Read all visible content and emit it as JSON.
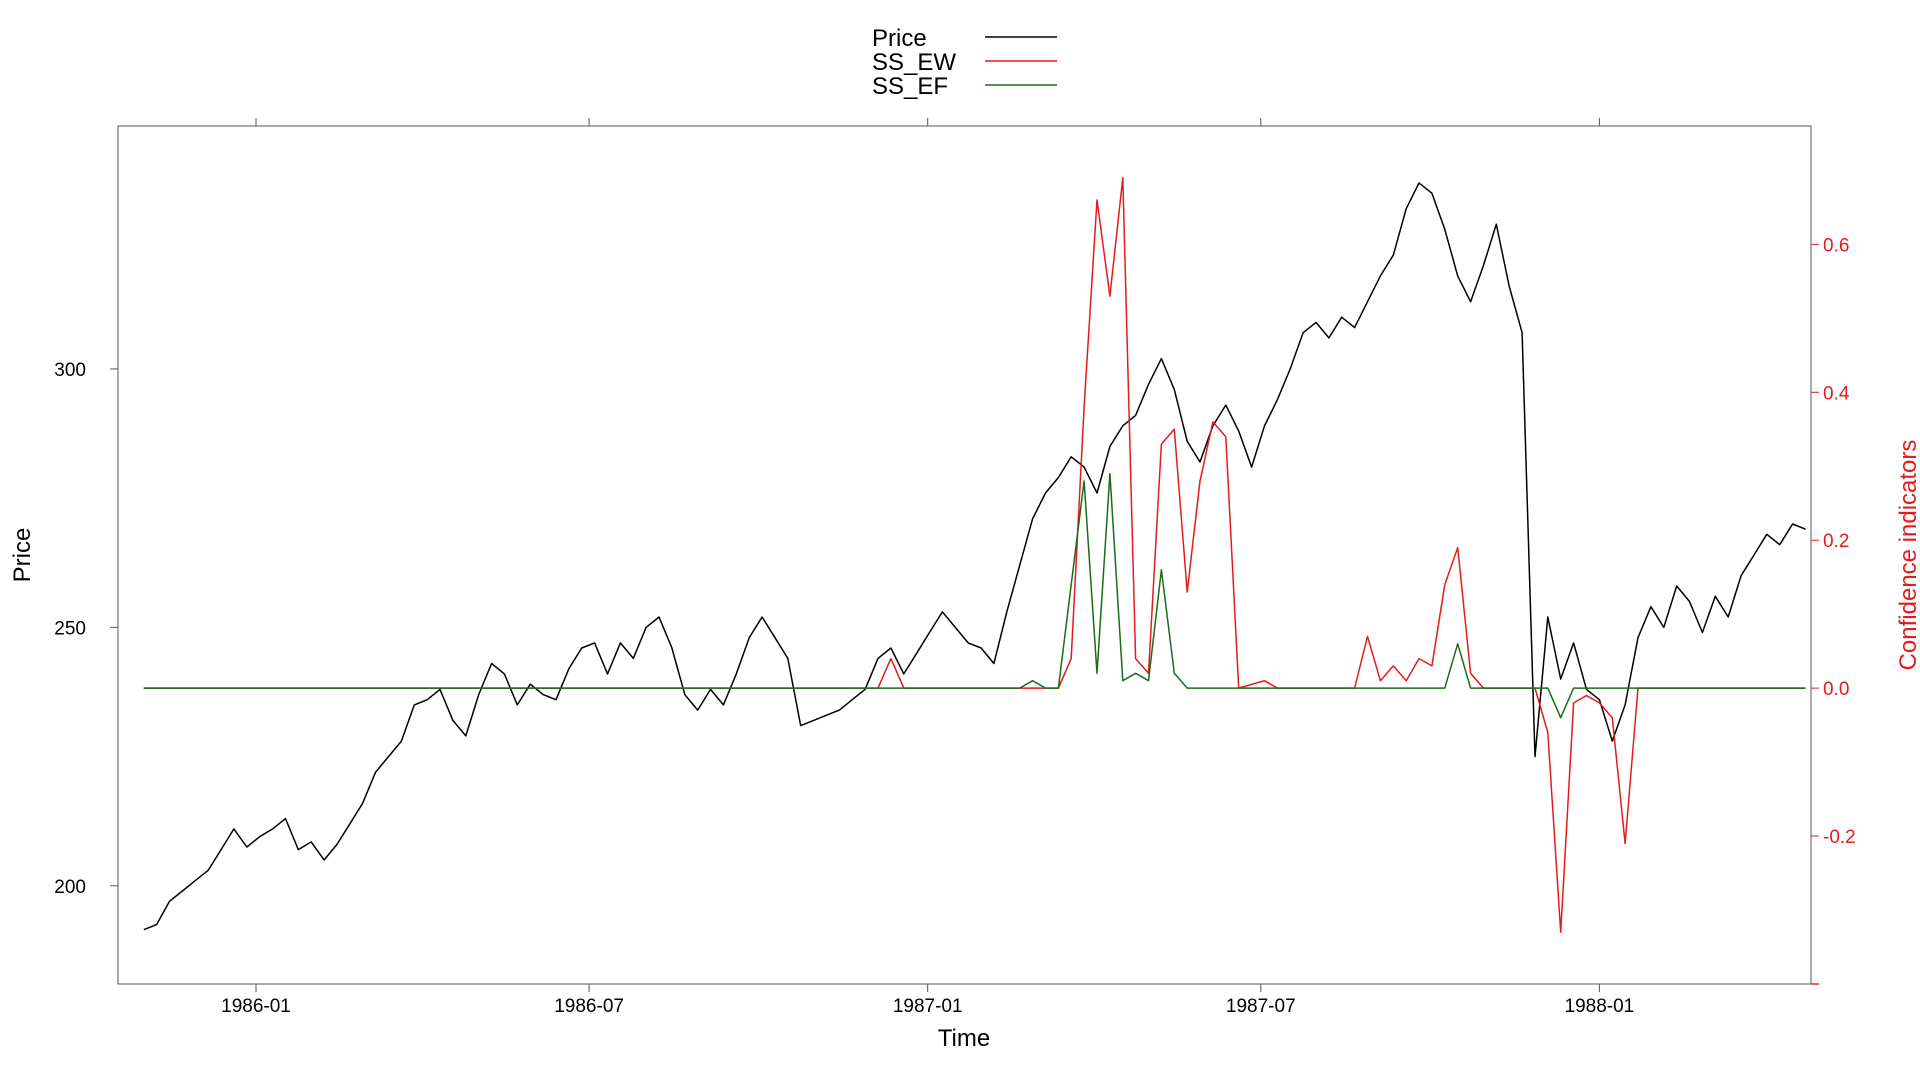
{
  "chart_data": {
    "type": "line",
    "xlabel": "Time",
    "ylabel": "Price",
    "y2label": "Confidence indicators",
    "xlim": [
      "1985-10-18",
      "1988-04-25"
    ],
    "ylim": [
      181,
      347
    ],
    "y2lim": [
      -0.4,
      0.76
    ],
    "x_ticks": [
      "1986-01-01",
      "1986-07-01",
      "1987-01-01",
      "1987-07-01",
      "1988-01-01"
    ],
    "x_tick_labels": [
      "1986-01",
      "1986-07",
      "1987-01",
      "1987-07",
      "1988-01"
    ],
    "y_ticks": [
      200,
      250,
      300
    ],
    "y_tick_labels": [
      "200",
      "250",
      "300"
    ],
    "y2_ticks": [
      -0.2,
      0.0,
      0.2,
      0.4,
      0.6
    ],
    "y2_tick_labels": [
      "-0.2",
      "0.0",
      "0.2",
      "0.4",
      "0.6"
    ],
    "legend": {
      "position": "top-center",
      "entries": [
        "Price",
        "SS_EW",
        "SS_EF"
      ]
    },
    "colors": {
      "Price": "#000000",
      "SS_EW": "#e41a1c",
      "SS_EF": "#1a6b1a",
      "axis": "#555555",
      "y2axis": "#e41a1c"
    },
    "series": [
      {
        "name": "Price",
        "axis": "left",
        "points": [
          [
            "1985-11-01",
            191.5
          ],
          [
            "1985-11-08",
            192.5
          ],
          [
            "1985-11-15",
            197
          ],
          [
            "1985-11-22",
            199
          ],
          [
            "1985-11-29",
            201
          ],
          [
            "1985-12-06",
            203
          ],
          [
            "1985-12-13",
            207
          ],
          [
            "1985-12-20",
            211
          ],
          [
            "1985-12-27",
            207.5
          ],
          [
            "1986-01-03",
            209.5
          ],
          [
            "1986-01-10",
            211
          ],
          [
            "1986-01-17",
            213
          ],
          [
            "1986-01-24",
            207
          ],
          [
            "1986-01-31",
            208.5
          ],
          [
            "1986-02-07",
            205
          ],
          [
            "1986-02-14",
            208
          ],
          [
            "1986-02-21",
            212
          ],
          [
            "1986-02-28",
            216
          ],
          [
            "1986-03-07",
            222
          ],
          [
            "1986-03-14",
            225
          ],
          [
            "1986-03-21",
            228
          ],
          [
            "1986-03-28",
            235
          ],
          [
            "1986-04-04",
            236
          ],
          [
            "1986-04-11",
            238
          ],
          [
            "1986-04-18",
            232
          ],
          [
            "1986-04-25",
            229
          ],
          [
            "1986-05-02",
            237
          ],
          [
            "1986-05-09",
            243
          ],
          [
            "1986-05-16",
            241
          ],
          [
            "1986-05-23",
            235
          ],
          [
            "1986-05-30",
            239
          ],
          [
            "1986-06-06",
            237
          ],
          [
            "1986-06-13",
            236
          ],
          [
            "1986-06-20",
            242
          ],
          [
            "1986-06-27",
            246
          ],
          [
            "1986-07-04",
            247
          ],
          [
            "1986-07-11",
            241
          ],
          [
            "1986-07-18",
            247
          ],
          [
            "1986-07-25",
            244
          ],
          [
            "1986-08-01",
            250
          ],
          [
            "1986-08-08",
            252
          ],
          [
            "1986-08-15",
            246
          ],
          [
            "1986-08-22",
            237
          ],
          [
            "1986-08-29",
            234
          ],
          [
            "1986-09-05",
            238
          ],
          [
            "1986-09-12",
            235
          ],
          [
            "1986-09-19",
            241
          ],
          [
            "1986-09-26",
            248
          ],
          [
            "1986-10-03",
            252
          ],
          [
            "1986-10-10",
            248
          ],
          [
            "1986-10-17",
            244
          ],
          [
            "1986-10-24",
            231
          ],
          [
            "1986-10-31",
            232
          ],
          [
            "1986-11-07",
            233
          ],
          [
            "1986-11-14",
            234
          ],
          [
            "1986-11-21",
            236
          ],
          [
            "1986-11-28",
            238
          ],
          [
            "1986-12-05",
            244
          ],
          [
            "1986-12-12",
            246
          ],
          [
            "1986-12-19",
            241
          ],
          [
            "1986-12-26",
            245
          ],
          [
            "1987-01-02",
            249
          ],
          [
            "1987-01-09",
            253
          ],
          [
            "1987-01-16",
            250
          ],
          [
            "1987-01-23",
            247
          ],
          [
            "1987-01-30",
            246
          ],
          [
            "1987-02-06",
            243
          ],
          [
            "1987-02-13",
            253
          ],
          [
            "1987-02-20",
            262
          ],
          [
            "1987-02-27",
            271
          ],
          [
            "1987-03-06",
            276
          ],
          [
            "1987-03-13",
            279
          ],
          [
            "1987-03-20",
            283
          ],
          [
            "1987-03-27",
            281
          ],
          [
            "1987-04-03",
            276
          ],
          [
            "1987-04-10",
            285
          ],
          [
            "1987-04-17",
            289
          ],
          [
            "1987-04-24",
            291
          ],
          [
            "1987-05-01",
            297
          ],
          [
            "1987-05-08",
            302
          ],
          [
            "1987-05-15",
            296
          ],
          [
            "1987-05-22",
            286
          ],
          [
            "1987-05-29",
            282
          ],
          [
            "1987-06-05",
            289
          ],
          [
            "1987-06-12",
            293
          ],
          [
            "1987-06-19",
            288
          ],
          [
            "1987-06-26",
            281
          ],
          [
            "1987-07-03",
            289
          ],
          [
            "1987-07-10",
            294
          ],
          [
            "1987-07-17",
            300
          ],
          [
            "1987-07-24",
            307
          ],
          [
            "1987-07-31",
            309
          ],
          [
            "1987-08-07",
            306
          ],
          [
            "1987-08-14",
            310
          ],
          [
            "1987-08-21",
            308
          ],
          [
            "1987-08-28",
            313
          ],
          [
            "1987-09-04",
            318
          ],
          [
            "1987-09-11",
            322
          ],
          [
            "1987-09-18",
            331
          ],
          [
            "1987-09-25",
            336
          ],
          [
            "1987-10-02",
            334
          ],
          [
            "1987-10-09",
            327
          ],
          [
            "1987-10-16",
            318
          ],
          [
            "1987-10-23",
            313
          ],
          [
            "1987-10-30",
            320
          ],
          [
            "1987-11-06",
            328
          ],
          [
            "1987-11-13",
            316
          ],
          [
            "1987-11-20",
            307
          ],
          [
            "1987-11-27",
            225
          ],
          [
            "1987-12-04",
            252
          ],
          [
            "1987-12-11",
            240
          ],
          [
            "1987-12-18",
            247
          ],
          [
            "1987-12-25",
            238
          ],
          [
            "1988-01-01",
            236
          ],
          [
            "1988-01-08",
            228
          ],
          [
            "1988-01-15",
            235
          ],
          [
            "1988-01-22",
            248
          ],
          [
            "1988-01-29",
            254
          ],
          [
            "1988-02-05",
            250
          ],
          [
            "1988-02-12",
            258
          ],
          [
            "1988-02-19",
            255
          ],
          [
            "1988-02-26",
            249
          ],
          [
            "1988-03-04",
            256
          ],
          [
            "1988-03-11",
            252
          ],
          [
            "1988-03-18",
            260
          ],
          [
            "1988-03-25",
            264
          ],
          [
            "1988-04-01",
            268
          ],
          [
            "1988-04-08",
            266
          ],
          [
            "1988-04-15",
            270
          ],
          [
            "1988-04-22",
            269
          ]
        ]
      },
      {
        "name": "SS_EW",
        "axis": "right",
        "points": [
          [
            "1985-11-01",
            0
          ],
          [
            "1986-12-05",
            0
          ],
          [
            "1986-12-12",
            0.04
          ],
          [
            "1986-12-19",
            0
          ],
          [
            "1987-03-13",
            0
          ],
          [
            "1987-03-20",
            0.04
          ],
          [
            "1987-03-27",
            0.38
          ],
          [
            "1987-04-03",
            0.66
          ],
          [
            "1987-04-10",
            0.53
          ],
          [
            "1987-04-17",
            0.69
          ],
          [
            "1987-04-24",
            0.04
          ],
          [
            "1987-05-01",
            0.02
          ],
          [
            "1987-05-08",
            0.33
          ],
          [
            "1987-05-15",
            0.35
          ],
          [
            "1987-05-22",
            0.13
          ],
          [
            "1987-05-29",
            0.28
          ],
          [
            "1987-06-05",
            0.36
          ],
          [
            "1987-06-12",
            0.34
          ],
          [
            "1987-06-19",
            0
          ],
          [
            "1987-07-03",
            0.01
          ],
          [
            "1987-07-10",
            0
          ],
          [
            "1987-08-21",
            0
          ],
          [
            "1987-08-28",
            0.07
          ],
          [
            "1987-09-04",
            0.01
          ],
          [
            "1987-09-11",
            0.03
          ],
          [
            "1987-09-18",
            0.01
          ],
          [
            "1987-09-25",
            0.04
          ],
          [
            "1987-10-02",
            0.03
          ],
          [
            "1987-10-09",
            0.14
          ],
          [
            "1987-10-16",
            0.19
          ],
          [
            "1987-10-23",
            0.02
          ],
          [
            "1987-10-30",
            0
          ],
          [
            "1987-11-27",
            0
          ],
          [
            "1987-12-04",
            -0.06
          ],
          [
            "1987-12-11",
            -0.33
          ],
          [
            "1987-12-18",
            -0.02
          ],
          [
            "1987-12-25",
            -0.01
          ],
          [
            "1988-01-01",
            -0.02
          ],
          [
            "1988-01-08",
            -0.04
          ],
          [
            "1988-01-15",
            -0.21
          ],
          [
            "1988-01-22",
            0
          ],
          [
            "1988-04-22",
            0
          ]
        ]
      },
      {
        "name": "SS_EF",
        "axis": "right",
        "points": [
          [
            "1985-11-01",
            0
          ],
          [
            "1987-02-20",
            0
          ],
          [
            "1987-02-27",
            0.01
          ],
          [
            "1987-03-06",
            0
          ],
          [
            "1987-03-13",
            0
          ],
          [
            "1987-03-20",
            0.14
          ],
          [
            "1987-03-27",
            0.28
          ],
          [
            "1987-04-03",
            0.02
          ],
          [
            "1987-04-10",
            0.29
          ],
          [
            "1987-04-17",
            0.01
          ],
          [
            "1987-04-24",
            0.02
          ],
          [
            "1987-05-01",
            0.01
          ],
          [
            "1987-05-08",
            0.16
          ],
          [
            "1987-05-15",
            0.02
          ],
          [
            "1987-05-22",
            0
          ],
          [
            "1987-10-09",
            0
          ],
          [
            "1987-10-16",
            0.06
          ],
          [
            "1987-10-23",
            0
          ],
          [
            "1987-12-04",
            0
          ],
          [
            "1987-12-11",
            -0.04
          ],
          [
            "1987-12-18",
            0
          ],
          [
            "1988-04-22",
            0
          ]
        ]
      }
    ]
  }
}
